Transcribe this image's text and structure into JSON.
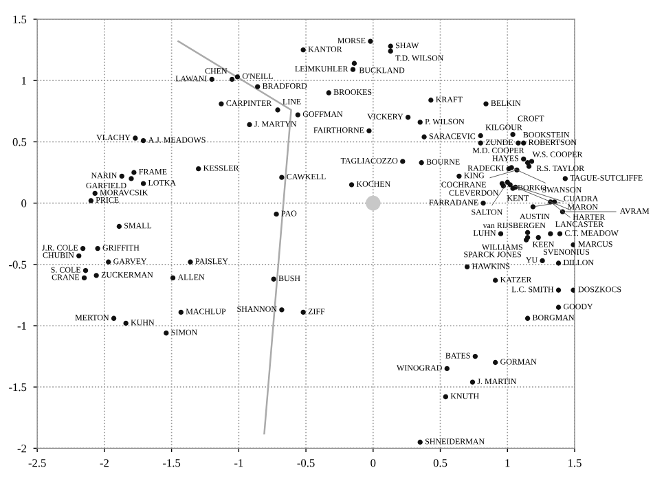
{
  "chart_data": {
    "type": "scatter",
    "xlim": [
      -2.5,
      1.5
    ],
    "ylim": [
      -2,
      1.5
    ],
    "xticks": [
      -2.5,
      -2,
      -1.5,
      -1,
      -0.5,
      0,
      0.5,
      1,
      1.5
    ],
    "yticks": [
      -2,
      -1.5,
      -1,
      -0.5,
      0,
      0.5,
      1,
      1.5
    ],
    "grid": true,
    "legend": false,
    "series": [
      {
        "type": "line",
        "color": "#aaaaaa",
        "line_style": "solid",
        "marker": "none",
        "x": [
          -1.45,
          -0.61,
          -0.81
        ],
        "values": [
          1.32,
          0.76,
          -1.88
        ]
      },
      {
        "type": "bubble",
        "color": "#c8c8c8",
        "marker": "circle",
        "sizes": [
          1
        ],
        "x": [
          0
        ],
        "values": [
          0
        ]
      },
      {
        "color": "#111111",
        "marker": "circle",
        "x": [
          -0.52,
          -1.2,
          -1.05,
          -1.01,
          -0.86,
          -1.13,
          -0.71,
          -0.56,
          -0.92,
          -1.77,
          -1.71,
          -1.3,
          -0.68,
          -1.87,
          -1.78,
          -1.8,
          -1.71,
          -2.07,
          -2.1,
          -1.89,
          -0.72,
          -0.02,
          0.13,
          0.13,
          -0.14,
          -0.15,
          -0.33,
          0.43,
          0.84,
          0.26,
          0.35,
          -0.03,
          0.38,
          0.8,
          1.04,
          0.8,
          1.08,
          1.12,
          1.12,
          1.15,
          1.18,
          1.16,
          1.01,
          1.03,
          1.07,
          1.43,
          0.64,
          0.96,
          1.0,
          0.97,
          1.02,
          1.04,
          1.06,
          0.22,
          0.36,
          -0.16,
          0.82,
          1.32,
          1.35,
          1.19,
          1.41,
          1.32,
          1.39,
          0.95,
          1.15,
          1.15,
          1.14,
          1.23,
          1.49,
          1.26,
          1.38,
          0.7,
          0.91,
          1.38,
          1.49,
          1.38,
          1.15,
          0.76,
          0.91,
          0.55,
          0.74,
          0.54,
          0.35,
          -2.16,
          -2.05,
          -2.19,
          -1.97,
          -1.36,
          -2.14,
          -2.15,
          -2.06,
          -1.49,
          -0.74,
          -0.68,
          -0.52,
          -1.43,
          -1.93,
          -1.84,
          -1.54
        ],
        "values": [
          1.25,
          1.01,
          1.01,
          1.03,
          0.95,
          0.81,
          0.76,
          0.72,
          0.64,
          0.53,
          0.51,
          0.28,
          0.21,
          0.22,
          0.25,
          0.2,
          0.16,
          0.08,
          0.02,
          -0.19,
          -0.09,
          1.32,
          1.28,
          1.24,
          1.14,
          1.09,
          0.9,
          0.84,
          0.81,
          0.7,
          0.66,
          0.59,
          0.54,
          0.55,
          0.56,
          0.49,
          0.49,
          0.49,
          0.36,
          0.33,
          0.34,
          0.3,
          0.28,
          0.29,
          0.27,
          0.2,
          0.22,
          0.16,
          0.17,
          0.14,
          0.15,
          0.12,
          0.13,
          0.34,
          0.33,
          0.15,
          0.0,
          0.01,
          0.01,
          -0.03,
          -0.07,
          -0.25,
          -0.25,
          -0.25,
          -0.24,
          -0.28,
          -0.3,
          -0.28,
          -0.34,
          -0.47,
          -0.49,
          -0.52,
          -0.63,
          -0.71,
          -0.71,
          -0.85,
          -0.94,
          -1.25,
          -1.3,
          -1.35,
          -1.46,
          -1.58,
          -1.95,
          -0.37,
          -0.37,
          -0.43,
          -0.48,
          -0.48,
          -0.55,
          -0.61,
          -0.59,
          -0.61,
          -0.62,
          -0.87,
          -0.89,
          -0.89,
          -0.94,
          -0.98,
          -1.06
        ]
      }
    ],
    "annotations": [
      {
        "text": "KANTOR",
        "x": -0.52,
        "y": 1.25
      },
      {
        "text": "LAWANI",
        "x": -1.2,
        "y": 1.01
      },
      {
        "text": "CHEN",
        "x": -1.05,
        "y": 1.01
      },
      {
        "text": "O'NEILL",
        "x": -1.01,
        "y": 1.03
      },
      {
        "text": "BRADFORD",
        "x": -0.86,
        "y": 0.95
      },
      {
        "text": "CARPINTER",
        "x": -1.13,
        "y": 0.81
      },
      {
        "text": "LINE",
        "x": -0.71,
        "y": 0.76
      },
      {
        "text": "GOFFMAN",
        "x": -0.56,
        "y": 0.72
      },
      {
        "text": "J. MARTYN",
        "x": -0.92,
        "y": 0.64
      },
      {
        "text": "VLACHY",
        "x": -1.77,
        "y": 0.53
      },
      {
        "text": "A.J. MEADOWS",
        "x": -1.71,
        "y": 0.51
      },
      {
        "text": "KESSLER",
        "x": -1.3,
        "y": 0.28
      },
      {
        "text": "CAWKELL",
        "x": -0.68,
        "y": 0.21
      },
      {
        "text": "NARIN",
        "x": -1.87,
        "y": 0.22
      },
      {
        "text": "FRAME",
        "x": -1.78,
        "y": 0.25
      },
      {
        "text": "GARFIELD",
        "x": -1.8,
        "y": 0.2
      },
      {
        "text": "LOTKA",
        "x": -1.71,
        "y": 0.16
      },
      {
        "text": "MORAVCSIK",
        "x": -2.07,
        "y": 0.08
      },
      {
        "text": "PRICE",
        "x": -2.1,
        "y": 0.02
      },
      {
        "text": "SMALL",
        "x": -1.89,
        "y": -0.19
      },
      {
        "text": "PAO",
        "x": -0.72,
        "y": -0.09
      },
      {
        "text": "MORSE",
        "x": -0.02,
        "y": 1.32
      },
      {
        "text": "SHAW",
        "x": 0.13,
        "y": 1.28
      },
      {
        "text": "T.D. WILSON",
        "x": 0.13,
        "y": 1.24
      },
      {
        "text": "BUCKLAND",
        "x": -0.14,
        "y": 1.14
      },
      {
        "text": "LEIMKUHLER",
        "x": -0.15,
        "y": 1.09
      },
      {
        "text": "BROOKES",
        "x": -0.33,
        "y": 0.9
      },
      {
        "text": "KRAFT",
        "x": 0.43,
        "y": 0.84
      },
      {
        "text": "BELKIN",
        "x": 0.84,
        "y": 0.81
      },
      {
        "text": "VICKERY",
        "x": 0.26,
        "y": 0.7
      },
      {
        "text": "P. WILSON",
        "x": 0.35,
        "y": 0.66
      },
      {
        "text": "FAIRTHORNE",
        "x": -0.03,
        "y": 0.59
      },
      {
        "text": "SARACEVIC",
        "x": 0.38,
        "y": 0.54
      },
      {
        "text": "KILGOUR",
        "x": 0.8,
        "y": 0.55
      },
      {
        "text": "CROFT",
        "x": 1.04,
        "y": 0.56
      },
      {
        "text": "ZUNDE",
        "x": 0.8,
        "y": 0.49
      },
      {
        "text": "BOOKSTEIN",
        "x": 1.08,
        "y": 0.49
      },
      {
        "text": "ROBERTSON",
        "x": 1.12,
        "y": 0.49
      },
      {
        "text": "HAYES",
        "x": 1.12,
        "y": 0.36
      },
      {
        "text": "W.S. COOPER",
        "x": 1.15,
        "y": 0.33
      },
      {
        "text": "R.S. TAYLOR",
        "x": 1.18,
        "y": 0.34
      },
      {
        "text": "M.D. COOPER",
        "x": 1.16,
        "y": 0.3
      },
      {
        "text": "RADECKI",
        "x": 1.01,
        "y": 0.28
      },
      {
        "text": "SWANSON",
        "x": 1.03,
        "y": 0.29
      },
      {
        "text": "COCHRANE",
        "x": 1.07,
        "y": 0.27
      },
      {
        "text": "TAGUE-SUTCLIFFE",
        "x": 1.43,
        "y": 0.2
      },
      {
        "text": "KING",
        "x": 0.64,
        "y": 0.22
      },
      {
        "text": "KENT",
        "x": 0.96,
        "y": 0.16
      },
      {
        "text": "SALTON",
        "x": 1.0,
        "y": 0.17
      },
      {
        "text": "CLEVERDON",
        "x": 0.97,
        "y": 0.14
      },
      {
        "text": "MARON",
        "x": 1.02,
        "y": 0.15
      },
      {
        "text": "BORKO",
        "x": 1.04,
        "y": 0.12
      },
      {
        "text": "HARTER",
        "x": 1.06,
        "y": 0.13
      },
      {
        "text": "TAGLIACOZZO",
        "x": 0.22,
        "y": 0.34
      },
      {
        "text": "BOURNE",
        "x": 0.36,
        "y": 0.33
      },
      {
        "text": "KOCHEN",
        "x": -0.16,
        "y": 0.15
      },
      {
        "text": "FARRADANE",
        "x": 0.82,
        "y": 0.0
      },
      {
        "text": "LANCASTER",
        "x": 1.32,
        "y": 0.01
      },
      {
        "text": "AUSTIN",
        "x": 1.35,
        "y": 0.01
      },
      {
        "text": "CUADRA",
        "x": 1.19,
        "y": -0.03
      },
      {
        "text": "AVRAM",
        "x": 1.41,
        "y": -0.07
      },
      {
        "text": "van RIJSBERGEN",
        "x": 1.32,
        "y": -0.25
      },
      {
        "text": "C.T. MEADOW",
        "x": 1.39,
        "y": -0.25
      },
      {
        "text": "LUHN",
        "x": 0.95,
        "y": -0.25
      },
      {
        "text": "WILLIAMS",
        "x": 1.15,
        "y": -0.24
      },
      {
        "text": "KEEN",
        "x": 1.15,
        "y": -0.28
      },
      {
        "text": "SPARCK JONES",
        "x": 1.14,
        "y": -0.3
      },
      {
        "text": "SVENONIUS",
        "x": 1.23,
        "y": -0.28
      },
      {
        "text": "MARCUS",
        "x": 1.49,
        "y": -0.34
      },
      {
        "text": "YU",
        "x": 1.26,
        "y": -0.47
      },
      {
        "text": "DILLON",
        "x": 1.38,
        "y": -0.49
      },
      {
        "text": "HAWKINS",
        "x": 0.7,
        "y": -0.52
      },
      {
        "text": "KATZER",
        "x": 0.91,
        "y": -0.63
      },
      {
        "text": "L.C. SMITH",
        "x": 1.38,
        "y": -0.71
      },
      {
        "text": "DOSZKOCS",
        "x": 1.49,
        "y": -0.71
      },
      {
        "text": "GOODY",
        "x": 1.38,
        "y": -0.85
      },
      {
        "text": "BORGMAN",
        "x": 1.15,
        "y": -0.94
      },
      {
        "text": "BATES",
        "x": 0.76,
        "y": -1.25
      },
      {
        "text": "GORMAN",
        "x": 0.91,
        "y": -1.3
      },
      {
        "text": "WINOGRAD",
        "x": 0.55,
        "y": -1.35
      },
      {
        "text": "J. MARTIN",
        "x": 0.74,
        "y": -1.46
      },
      {
        "text": "KNUTH",
        "x": 0.54,
        "y": -1.58
      },
      {
        "text": "SHNEIDERMAN",
        "x": 0.35,
        "y": -1.95
      },
      {
        "text": "J.R. COLE",
        "x": -2.16,
        "y": -0.37
      },
      {
        "text": "GRIFFITH",
        "x": -2.05,
        "y": -0.37
      },
      {
        "text": "CHUBIN",
        "x": -2.19,
        "y": -0.43
      },
      {
        "text": "GARVEY",
        "x": -1.97,
        "y": -0.48
      },
      {
        "text": "PAISLEY",
        "x": -1.36,
        "y": -0.48
      },
      {
        "text": "S. COLE",
        "x": -2.14,
        "y": -0.55
      },
      {
        "text": "CRANE",
        "x": -2.15,
        "y": -0.61
      },
      {
        "text": "ZUCKERMAN",
        "x": -2.06,
        "y": -0.59
      },
      {
        "text": "ALLEN",
        "x": -1.49,
        "y": -0.61
      },
      {
        "text": "BUSH",
        "x": -0.74,
        "y": -0.62
      },
      {
        "text": "SHANNON",
        "x": -0.68,
        "y": -0.87
      },
      {
        "text": "ZIFF",
        "x": -0.52,
        "y": -0.89
      },
      {
        "text": "MACHLUP",
        "x": -1.43,
        "y": -0.89
      },
      {
        "text": "MERTON",
        "x": -1.93,
        "y": -0.94
      },
      {
        "text": "KUHN",
        "x": -1.84,
        "y": -0.98
      },
      {
        "text": "SIMON",
        "x": -1.54,
        "y": -1.06
      }
    ]
  }
}
